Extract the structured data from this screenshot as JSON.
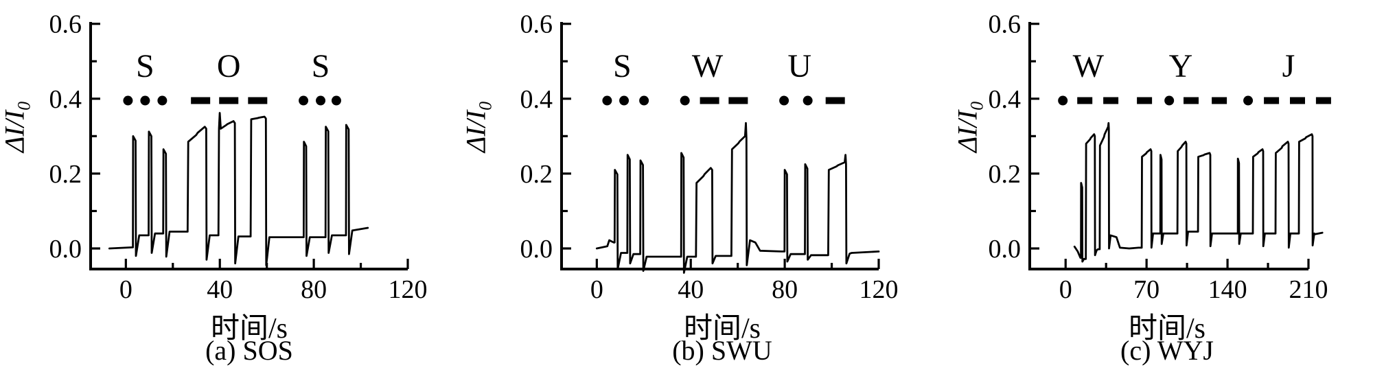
{
  "figure": {
    "background": "#ffffff",
    "ink_color": "#000000",
    "description_words": [
      "SOS",
      "SWU",
      "WYJ"
    ]
  },
  "chart_data": [
    {
      "type": "line",
      "caption": "(a) SOS",
      "word": "SOS",
      "xlabel": "时间/s",
      "ylabel": "ΔI/I0",
      "ylabel_main": "ΔI/I",
      "ylabel_sub": "0",
      "xlim": [
        -15,
        120
      ],
      "ylim": [
        -0.055,
        0.605
      ],
      "xticks": [
        0,
        40,
        80,
        120
      ],
      "xtick_labels": [
        "0",
        "40",
        "80",
        "120"
      ],
      "xminor": [
        20,
        60,
        100
      ],
      "yticks": [
        0.0,
        0.2,
        0.4,
        0.6
      ],
      "ytick_labels": [
        "0.0",
        "0.2",
        "0.4",
        "0.6"
      ],
      "yminor": [
        0.1,
        0.3,
        0.5
      ],
      "grid": false,
      "letters": [
        {
          "ch": "S",
          "t": 8.2
        },
        {
          "ch": "O",
          "t": 43.8
        },
        {
          "ch": "S",
          "t": 82.9
        }
      ],
      "morse_markers": {
        "y_value": 0.395,
        "symbols": [
          {
            "kind": "dot",
            "t": 0.9
          },
          {
            "kind": "dot",
            "t": 8.2
          },
          {
            "kind": "dot",
            "t": 15.5
          },
          {
            "kind": "dash",
            "t": 31.8
          },
          {
            "kind": "dash",
            "t": 43.8
          },
          {
            "kind": "dash",
            "t": 56.1
          },
          {
            "kind": "dot",
            "t": 75.6
          },
          {
            "kind": "dot",
            "t": 82.9
          },
          {
            "kind": "dot",
            "t": 89.6
          }
        ]
      },
      "trace": {
        "lead": [
          [
            -7.0,
            0.0
          ],
          [
            2.8,
            0.003
          ]
        ],
        "pulses": [
          {
            "kind": "dot",
            "on": 3.0,
            "off": 4.3,
            "v": 0.3,
            "under": -0.02,
            "base": 0.035
          },
          {
            "kind": "dot",
            "on": 9.7,
            "off": 11.0,
            "v": 0.312,
            "under": -0.012,
            "base": 0.04
          },
          {
            "kind": "dot",
            "on": 15.9,
            "off": 17.2,
            "v": 0.265,
            "under": -0.022,
            "base": 0.045
          },
          {
            "kind": "dash",
            "on": 26.3,
            "off": 34.2,
            "v0": 0.285,
            "v1": 0.325,
            "under": -0.03,
            "base": 0.035
          },
          {
            "kind": "dash",
            "on": 39.4,
            "off": 46.4,
            "v0": 0.32,
            "v1": 0.34,
            "spike": 0.362,
            "spike_at": "start",
            "under": -0.04,
            "base": 0.032
          },
          {
            "kind": "dash",
            "on": 53.1,
            "off": 59.6,
            "v0": 0.345,
            "v1": 0.352,
            "under": -0.045,
            "base": 0.03
          },
          {
            "kind": "dot",
            "on": 75.7,
            "off": 76.9,
            "v": 0.285,
            "under": -0.02,
            "base": 0.03
          },
          {
            "kind": "dot",
            "on": 85.0,
            "off": 86.3,
            "v": 0.325,
            "under": -0.012,
            "base": 0.035
          },
          {
            "kind": "dot",
            "on": 93.7,
            "off": 95.0,
            "v": 0.33,
            "under": -0.015,
            "base": 0.048
          }
        ],
        "tail": [
          [
            96.5,
            0.048
          ],
          [
            103.0,
            0.055
          ]
        ]
      }
    },
    {
      "type": "line",
      "caption": "(b) SWU",
      "word": "SWU",
      "xlabel": "时间/s",
      "ylabel": "ΔI/I0",
      "ylabel_main": "ΔI/I",
      "ylabel_sub": "0",
      "xlim": [
        -15,
        120
      ],
      "ylim": [
        -0.055,
        0.605
      ],
      "xticks": [
        0,
        40,
        80,
        120
      ],
      "xtick_labels": [
        "0",
        "40",
        "80",
        "120"
      ],
      "xminor": [
        20,
        60,
        100
      ],
      "yticks": [
        0.0,
        0.2,
        0.4,
        0.6
      ],
      "ytick_labels": [
        "0.0",
        "0.2",
        "0.4",
        "0.6"
      ],
      "yminor": [
        0.1,
        0.3,
        0.5
      ],
      "grid": false,
      "letters": [
        {
          "ch": "S",
          "t": 10.8
        },
        {
          "ch": "W",
          "t": 47.1
        },
        {
          "ch": "U",
          "t": 86.3
        }
      ],
      "morse_markers": {
        "y_value": 0.395,
        "symbols": [
          {
            "kind": "dot",
            "t": 4.4
          },
          {
            "kind": "dot",
            "t": 11.6
          },
          {
            "kind": "dot",
            "t": 20.1
          },
          {
            "kind": "dot",
            "t": 37.5
          },
          {
            "kind": "dash",
            "t": 48.0
          },
          {
            "kind": "dash",
            "t": 60.2
          },
          {
            "kind": "dot",
            "t": 79.7
          },
          {
            "kind": "dot",
            "t": 89.8
          },
          {
            "kind": "dash",
            "t": 101.5
          }
        ]
      },
      "trace": {
        "lead": [
          [
            0.0,
            0.0
          ],
          [
            4.5,
            0.006
          ],
          [
            5.3,
            0.022
          ],
          [
            7.2,
            0.016
          ]
        ],
        "pulses": [
          {
            "kind": "dot",
            "on": 7.6,
            "off": 8.9,
            "v": 0.21,
            "under": -0.055,
            "base": -0.012
          },
          {
            "kind": "dot",
            "on": 13.0,
            "off": 14.2,
            "v": 0.25,
            "under": -0.04,
            "base": -0.015
          },
          {
            "kind": "dot",
            "on": 18.5,
            "off": 19.8,
            "v": 0.235,
            "under": -0.06,
            "base": -0.022
          },
          {
            "kind": "dot",
            "on": 35.9,
            "off": 37.1,
            "v": 0.255,
            "under": -0.065,
            "base": -0.022
          },
          {
            "kind": "dash",
            "on": 42.2,
            "off": 49.1,
            "v0": 0.175,
            "v1": 0.215,
            "under": -0.04,
            "base": -0.02
          },
          {
            "kind": "dash",
            "on": 57.3,
            "off": 63.7,
            "v0": 0.265,
            "v1": 0.3,
            "spike": 0.335,
            "spike_at": "end",
            "under": -0.045,
            "base": 0.022,
            "post": [
              [
                67.5,
                0.016
              ],
              [
                69.5,
                -0.006
              ],
              [
                78.5,
                -0.008
              ]
            ]
          },
          {
            "kind": "dot",
            "on": 79.9,
            "off": 81.1,
            "v": 0.21,
            "under": -0.035,
            "base": -0.015
          },
          {
            "kind": "dot",
            "on": 88.6,
            "off": 89.8,
            "v": 0.225,
            "under": -0.03,
            "base": -0.018
          },
          {
            "kind": "dash",
            "on": 98.5,
            "off": 106.1,
            "v0": 0.21,
            "v1": 0.23,
            "spike": 0.25,
            "spike_at": "end",
            "under": -0.04,
            "base": -0.014
          }
        ],
        "tail": [
          [
            108.5,
            -0.012
          ],
          [
            120.0,
            -0.008
          ]
        ]
      }
    },
    {
      "type": "line",
      "caption": "(c) WYJ",
      "word": "WYJ",
      "xlabel": "时间/s",
      "ylabel": "ΔI/I0",
      "ylabel_main": "ΔI/I",
      "ylabel_sub": "0",
      "xlim": [
        -31,
        210
      ],
      "ylim": [
        -0.055,
        0.605
      ],
      "xticks": [
        0,
        70,
        140,
        210
      ],
      "xtick_labels": [
        "0",
        "70",
        "140",
        "210"
      ],
      "xminor": [
        35,
        105,
        175
      ],
      "yticks": [
        0.0,
        0.2,
        0.4,
        0.6
      ],
      "ytick_labels": [
        "0.0",
        "0.2",
        "0.4",
        "0.6"
      ],
      "yminor": [
        0.1,
        0.3,
        0.5
      ],
      "grid": false,
      "letters": [
        {
          "ch": "W",
          "t": 19.6
        },
        {
          "ch": "Y",
          "t": 99.6
        },
        {
          "ch": "J",
          "t": 192.8
        }
      ],
      "morse_markers": {
        "y_value": 0.395,
        "symbols": [
          {
            "kind": "dot",
            "t": -2.4
          },
          {
            "kind": "dash",
            "t": 16.6
          },
          {
            "kind": "dash",
            "t": 39.1
          },
          {
            "kind": "dash",
            "t": 68.2
          },
          {
            "kind": "dot",
            "t": 89.6
          },
          {
            "kind": "dash",
            "t": 108.5
          },
          {
            "kind": "dash",
            "t": 132.9
          },
          {
            "kind": "dot",
            "t": 157.8
          },
          {
            "kind": "dash",
            "t": 178.0
          },
          {
            "kind": "dash",
            "t": 200.5
          },
          {
            "kind": "dash",
            "t": 223.0
          }
        ]
      },
      "trace": {
        "lead": [
          [
            7.7,
            0.005
          ],
          [
            10.5,
            -0.008
          ],
          [
            12.8,
            -0.025
          ]
        ],
        "pulses": [
          {
            "kind": "dot",
            "on": 13.3,
            "off": 14.5,
            "v": 0.175,
            "under": -0.035,
            "base": -0.028
          },
          {
            "kind": "dash",
            "on": 17.5,
            "off": 25.3,
            "v0": 0.28,
            "v1": 0.305,
            "under": -0.018,
            "base": -0.005,
            "post": [
              [
                28.0,
                -0.002
              ]
            ]
          },
          {
            "kind": "dash",
            "on": 29.5,
            "off": 37.4,
            "v0": 0.275,
            "v1": 0.325,
            "spike": 0.335,
            "spike_at": "end",
            "under": 0.0,
            "base": 0.035,
            "post": [
              [
                44.0,
                0.03
              ],
              [
                47.0,
                0.002
              ],
              [
                55.0,
                0.0
              ],
              [
                63.0,
                0.002
              ]
            ]
          },
          {
            "kind": "dash",
            "on": 65.8,
            "off": 74.1,
            "v0": 0.245,
            "v1": 0.265,
            "under": 0.002,
            "base": 0.04
          },
          {
            "kind": "dot",
            "on": 81.9,
            "off": 83.1,
            "v": 0.25,
            "under": 0.012,
            "base": 0.04
          },
          {
            "kind": "dash",
            "on": 96.7,
            "off": 104.4,
            "v0": 0.26,
            "v1": 0.285,
            "under": 0.008,
            "base": 0.045
          },
          {
            "kind": "dash",
            "on": 114.5,
            "off": 125.1,
            "v0": 0.245,
            "v1": 0.255,
            "under": 0.006,
            "base": 0.04
          },
          {
            "kind": "dot",
            "on": 148.9,
            "off": 150.1,
            "v": 0.24,
            "under": 0.012,
            "base": 0.04
          },
          {
            "kind": "dash",
            "on": 161.9,
            "off": 170.8,
            "v0": 0.245,
            "v1": 0.265,
            "under": 0.006,
            "base": 0.04
          },
          {
            "kind": "dash",
            "on": 181.5,
            "off": 192.8,
            "v0": 0.255,
            "v1": 0.285,
            "under": 0.002,
            "base": 0.04
          },
          {
            "kind": "dash",
            "on": 201.7,
            "off": 213.5,
            "v0": 0.285,
            "v1": 0.305,
            "under": 0.008,
            "base": 0.04
          }
        ],
        "tail": [
          [
            215.5,
            0.038
          ],
          [
            222.0,
            0.042
          ]
        ]
      }
    }
  ]
}
